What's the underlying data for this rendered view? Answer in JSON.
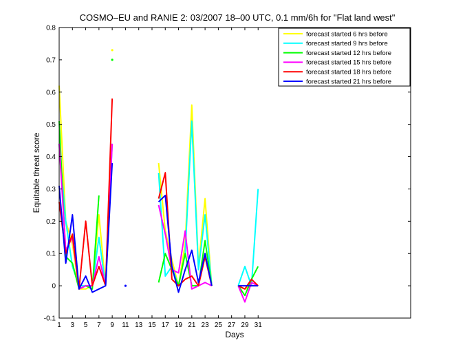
{
  "chart_data": {
    "type": "line",
    "title": "COSMO–EU and RANIE 2: 03/2007 18–00 UTC, 0.1 mm/6h for \"Flat land west\"",
    "xlabel": "Days",
    "ylabel": "Equitable threat score",
    "xlim": [
      1,
      54
    ],
    "ylim": [
      -0.1,
      0.8
    ],
    "xticks": [
      1,
      3,
      5,
      7,
      9,
      11,
      13,
      15,
      17,
      19,
      21,
      23,
      25,
      27,
      29,
      31
    ],
    "yticks": [
      -0.1,
      0,
      0.1,
      0.2,
      0.3,
      0.4,
      0.5,
      0.6,
      0.7,
      0.8
    ],
    "ytick_labels": [
      "-0.1",
      "0",
      "0.1",
      "0.2",
      "0.3",
      "0.4",
      "0.5",
      "0.6",
      "0.7",
      "0.8"
    ],
    "legend_position": "top-right",
    "grid": false,
    "series": [
      {
        "name": "forecast started 6 hrs before",
        "color": "#ffff00",
        "values": [
          [
            1,
            0.62
          ],
          [
            2,
            0.2
          ],
          [
            3,
            0.13
          ],
          [
            4,
            -0.01
          ],
          [
            5,
            -0.01
          ],
          [
            6,
            0.0
          ],
          [
            7,
            0.22
          ],
          [
            8,
            0.0
          ],
          [
            9,
            null
          ],
          [
            9,
            0.73
          ],
          [
            16,
            0.38
          ],
          [
            17,
            0.17
          ],
          [
            18,
            0.08
          ],
          [
            19,
            0.0
          ],
          [
            20,
            0.13
          ],
          [
            21,
            0.56
          ],
          [
            22,
            0.06
          ],
          [
            23,
            0.27
          ],
          [
            24,
            0.0
          ],
          [
            28,
            0.0
          ],
          [
            29,
            -0.01
          ],
          [
            30,
            0.0
          ],
          [
            31,
            0.0
          ]
        ]
      },
      {
        "name": "forecast started 9 hrs before",
        "color": "#00ffff",
        "values": [
          [
            1,
            0.44
          ],
          [
            2,
            0.2
          ],
          [
            3,
            0.06
          ],
          [
            4,
            0.0
          ],
          [
            5,
            0.0
          ],
          [
            6,
            0.0
          ],
          [
            7,
            0.15
          ],
          [
            8,
            0.0
          ],
          [
            9,
            0.44
          ],
          [
            16,
            0.35
          ],
          [
            17,
            0.03
          ],
          [
            18,
            0.06
          ],
          [
            19,
            0.0
          ],
          [
            20,
            0.1
          ],
          [
            21,
            0.51
          ],
          [
            22,
            0.05
          ],
          [
            23,
            0.22
          ],
          [
            24,
            0.0
          ],
          [
            28,
            0.0
          ],
          [
            29,
            0.06
          ],
          [
            30,
            0.0
          ],
          [
            31,
            0.3
          ]
        ]
      },
      {
        "name": "forecast started 12 hrs before",
        "color": "#00ff00",
        "values": [
          [
            1,
            0.51
          ],
          [
            2,
            0.09
          ],
          [
            3,
            0.07
          ],
          [
            4,
            -0.01
          ],
          [
            5,
            0.0
          ],
          [
            6,
            -0.01
          ],
          [
            7,
            0.28
          ],
          [
            8,
            null
          ],
          [
            9,
            0.7
          ],
          [
            16,
            0.01
          ],
          [
            17,
            0.1
          ],
          [
            18,
            0.05
          ],
          [
            19,
            0.0
          ],
          [
            20,
            0.1
          ],
          [
            21,
            0.0
          ],
          [
            22,
            0.0
          ],
          [
            23,
            0.14
          ],
          [
            24,
            0.0
          ],
          [
            28,
            0.0
          ],
          [
            29,
            -0.03
          ],
          [
            30,
            0.02
          ],
          [
            31,
            0.06
          ]
        ]
      },
      {
        "name": "forecast started 15 hrs before",
        "color": "#ff00ff",
        "values": [
          [
            1,
            0.44
          ],
          [
            2,
            0.11
          ],
          [
            3,
            0.15
          ],
          [
            4,
            -0.01
          ],
          [
            5,
            0.0
          ],
          [
            6,
            0.0
          ],
          [
            7,
            0.09
          ],
          [
            8,
            0.0
          ],
          [
            9,
            0.44
          ],
          [
            16,
            0.25
          ],
          [
            17,
            0.16
          ],
          [
            18,
            0.05
          ],
          [
            19,
            0.04
          ],
          [
            20,
            0.17
          ],
          [
            21,
            -0.01
          ],
          [
            22,
            0.0
          ],
          [
            23,
            0.01
          ],
          [
            24,
            0.0
          ],
          [
            28,
            0.0
          ],
          [
            29,
            -0.05
          ],
          [
            30,
            0.01
          ],
          [
            31,
            0.0
          ]
        ]
      },
      {
        "name": "forecast started 18 hrs before",
        "color": "#ff0000",
        "values": [
          [
            1,
            0.26
          ],
          [
            2,
            0.1
          ],
          [
            3,
            0.16
          ],
          [
            4,
            -0.01
          ],
          [
            5,
            0.2
          ],
          [
            6,
            0.0
          ],
          [
            7,
            0.06
          ],
          [
            8,
            0.0
          ],
          [
            9,
            0.58
          ],
          [
            16,
            0.27
          ],
          [
            17,
            0.35
          ],
          [
            18,
            0.02
          ],
          [
            19,
            0.0
          ],
          [
            20,
            0.02
          ],
          [
            21,
            0.03
          ],
          [
            22,
            0.0
          ],
          [
            23,
            0.09
          ],
          [
            24,
            0.0
          ],
          [
            28,
            0.0
          ],
          [
            29,
            -0.01
          ],
          [
            30,
            0.02
          ],
          [
            31,
            0.0
          ]
        ]
      },
      {
        "name": "forecast started 21 hrs before",
        "color": "#0000ff",
        "values": [
          [
            1,
            0.31
          ],
          [
            2,
            0.07
          ],
          [
            3,
            0.22
          ],
          [
            4,
            -0.01
          ],
          [
            5,
            0.03
          ],
          [
            6,
            -0.02
          ],
          [
            7,
            -0.01
          ],
          [
            8,
            0.0
          ],
          [
            9,
            0.38
          ],
          [
            11,
            0.0
          ],
          [
            16,
            0.26
          ],
          [
            17,
            0.28
          ],
          [
            18,
            0.06
          ],
          [
            19,
            -0.02
          ],
          [
            20,
            0.05
          ],
          [
            21,
            0.11
          ],
          [
            22,
            0.01
          ],
          [
            23,
            0.1
          ],
          [
            24,
            0.0
          ],
          [
            28,
            0.0
          ],
          [
            29,
            0.0
          ],
          [
            30,
            0.0
          ],
          [
            31,
            0.0
          ]
        ]
      }
    ]
  }
}
